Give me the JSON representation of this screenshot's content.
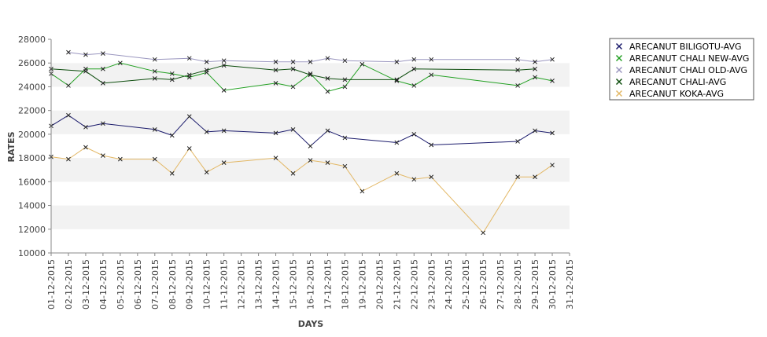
{
  "chart_data": {
    "type": "line",
    "title": "",
    "xlabel": "DAYS",
    "ylabel": "RATES",
    "ylim": [
      10000,
      28000
    ],
    "yticks": [
      "10000",
      "12000",
      "14000",
      "16000",
      "18000",
      "20000",
      "22000",
      "24000",
      "26000",
      "28000"
    ],
    "grid": false,
    "alternating_bands": true,
    "legend_position": "right",
    "categories": [
      "01-12-2015",
      "02-12-2015",
      "03-12-2015",
      "04-12-2015",
      "05-12-2015",
      "06-12-2015",
      "07-12-2015",
      "08-12-2015",
      "09-12-2015",
      "10-12-2015",
      "11-12-2015",
      "12-12-2015",
      "13-12-2015",
      "14-12-2015",
      "15-12-2015",
      "16-12-2015",
      "17-12-2015",
      "18-12-2015",
      "19-12-2015",
      "20-12-2015",
      "21-12-2015",
      "22-12-2015",
      "23-12-2015",
      "24-12-2015",
      "25-12-2015",
      "26-12-2015",
      "27-12-2015",
      "28-12-2015",
      "29-12-2015",
      "30-12-2015",
      "31-12-2015"
    ],
    "series": [
      {
        "name": "ARECANUT BILIGOTU-AVG",
        "color": "#1a1a6b",
        "values": [
          20700,
          21600,
          20600,
          20900,
          null,
          null,
          20400,
          19900,
          21500,
          20200,
          20300,
          null,
          null,
          20100,
          20400,
          19000,
          20300,
          19700,
          null,
          null,
          19300,
          20000,
          19100,
          null,
          null,
          null,
          null,
          19400,
          20300,
          20100,
          null
        ]
      },
      {
        "name": "ARECANUT CHALI NEW-AVG",
        "color": "#22a022",
        "values": [
          25100,
          24100,
          25500,
          25500,
          26000,
          null,
          25300,
          25100,
          24800,
          25200,
          23700,
          null,
          null,
          24300,
          24000,
          25100,
          23600,
          24000,
          25900,
          null,
          24500,
          24100,
          25000,
          null,
          null,
          null,
          null,
          24100,
          24800,
          24500,
          null
        ]
      },
      {
        "name": "ARECANUT CHALI OLD-AVG",
        "color": "#9a96bf",
        "values": [
          null,
          26900,
          26700,
          26800,
          null,
          null,
          26300,
          null,
          26400,
          26100,
          26200,
          null,
          null,
          26100,
          26100,
          26100,
          26400,
          26200,
          null,
          null,
          26100,
          26300,
          26300,
          null,
          null,
          null,
          null,
          26300,
          26100,
          26300,
          null
        ]
      },
      {
        "name": "ARECANUT CHALI-AVG",
        "color": "#0d4d0d",
        "values": [
          25500,
          null,
          25300,
          24300,
          null,
          null,
          24700,
          24600,
          25000,
          25400,
          25800,
          null,
          null,
          25400,
          25500,
          25000,
          24700,
          24600,
          null,
          null,
          24600,
          25500,
          null,
          null,
          null,
          null,
          null,
          25400,
          25500,
          null,
          null
        ]
      },
      {
        "name": "ARECANUT KOKA-AVG",
        "color": "#e3b866",
        "values": [
          18100,
          17900,
          18900,
          18200,
          17900,
          null,
          17900,
          16700,
          18800,
          16800,
          17600,
          null,
          null,
          18000,
          16700,
          17800,
          17600,
          17300,
          15200,
          null,
          16700,
          16200,
          16400,
          null,
          null,
          11700,
          null,
          16400,
          16400,
          17400,
          null
        ]
      }
    ]
  }
}
